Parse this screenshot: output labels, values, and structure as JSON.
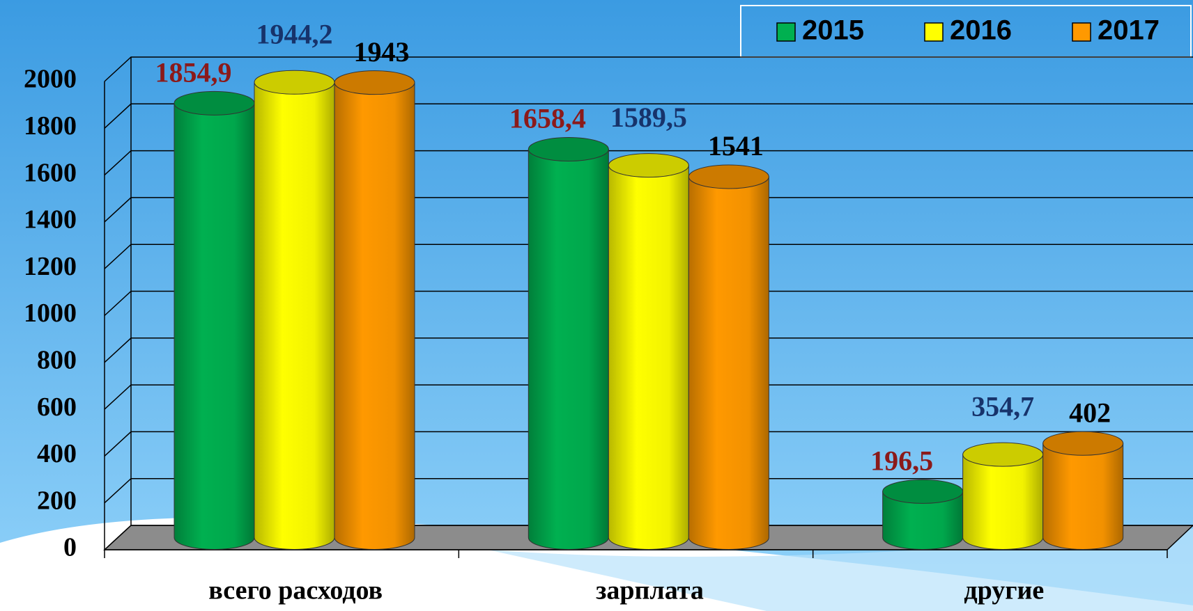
{
  "chart_data": {
    "type": "bar3d",
    "categories": [
      "всего расходов",
      "зарплата",
      "другие"
    ],
    "series": [
      {
        "name": "2015",
        "color": "#00b050",
        "label_color": "#8b1a1a",
        "values": [
          1854.9,
          1658.4,
          196.5
        ],
        "value_labels": [
          "1854,9",
          "1658,4",
          "196,5"
        ]
      },
      {
        "name": "2016",
        "color": "#ffff00",
        "label_color": "#17336b",
        "values": [
          1944.2,
          1589.5,
          354.7
        ],
        "value_labels": [
          "1944,2",
          "1589,5",
          "354,7"
        ]
      },
      {
        "name": "2017",
        "color": "#ff9900",
        "label_color": "#000000",
        "values": [
          1943,
          1541,
          402
        ],
        "value_labels": [
          "1943",
          "1541",
          "402"
        ]
      }
    ],
    "ylim": [
      0,
      2000
    ],
    "yticks": [
      0,
      200,
      400,
      600,
      800,
      1000,
      1200,
      1400,
      1600,
      1800,
      2000
    ],
    "grid": true,
    "legend": "top-right"
  }
}
